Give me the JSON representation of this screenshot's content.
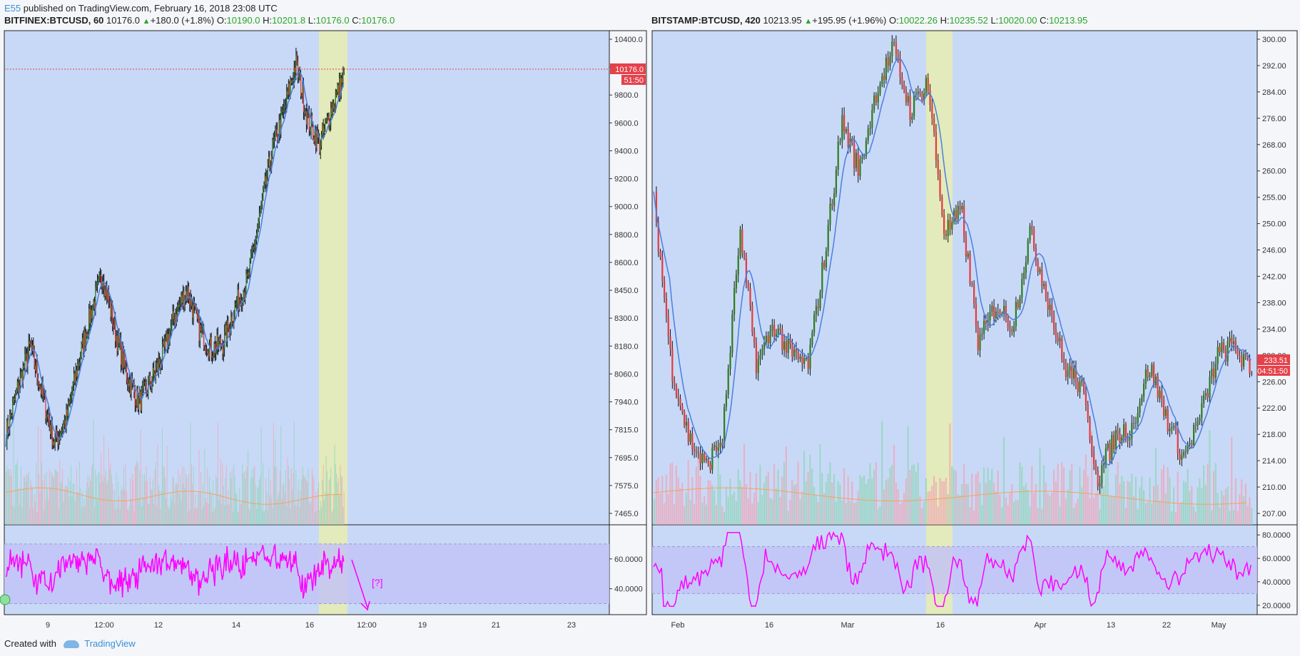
{
  "header": {
    "author": "E55",
    "published_text": "published on TradingView.com, February 16, 2018 23:08 UTC"
  },
  "footer": {
    "created_with": "Created with",
    "brand": "TradingView"
  },
  "colors": {
    "plot_bg": "#c8d9f7",
    "volume_up": "#8fd4b6",
    "volume_down": "#f2a3b3",
    "candle_up": "#2e7d1e",
    "candle_down": "#e53b3b",
    "ma_line": "#4a7fe0",
    "volume_ma": "#f5a25a",
    "rsi_line": "#ff00ff",
    "rsi_band": "#c2c2f7",
    "highlight": "#e8ecb0",
    "price_label": "#e5414a"
  },
  "chart_data": [
    {
      "type": "candlestick",
      "symbol": "BITFINEX:BTCUSD",
      "interval": "60",
      "legend": {
        "last": "10176.0",
        "change": "+180.0 (+1.8%)",
        "open_label": "O:",
        "open": "10190.0",
        "high_label": "H:",
        "high": "10201.8",
        "low_label": "L:",
        "low": "10176.0",
        "close_label": "C:",
        "close": "10176.0"
      },
      "price_axis_ticks": [
        "10400.0",
        "10000.0",
        "9800.0",
        "9600.0",
        "9400.0",
        "9200.0",
        "9000.0",
        "8800.0",
        "8600.0",
        "8450.0",
        "8300.0",
        "8180.0",
        "8060.0",
        "7940.0",
        "7815.0",
        "7695.0",
        "7575.0",
        "7465.0"
      ],
      "price_axis_range": [
        7465,
        10400
      ],
      "last_price_label": "10176.0",
      "countdown_label": "51:50",
      "time_axis_ticks": [
        "9",
        "12:00",
        "12",
        "14",
        "16",
        "12:00",
        "19",
        "21",
        "23"
      ],
      "rsi_axis_ticks": [
        "60.0000",
        "40.0000"
      ],
      "rsi_range": [
        25,
        80
      ],
      "rsi_band": [
        30,
        70
      ],
      "annotation": "[?]",
      "price_series_approx": [
        7950,
        8250,
        8500,
        8200,
        7900,
        8050,
        8400,
        8700,
        8950,
        8600,
        8320,
        8150,
        8280,
        8450,
        8700,
        8850,
        8600,
        8480,
        8520,
        8750,
        8900,
        9300,
        9700,
        9950,
        10250,
        9900,
        9750,
        9980,
        10176
      ]
    },
    {
      "type": "candlestick",
      "symbol": "BITSTAMP:BTCUSD",
      "interval": "420",
      "legend": {
        "last": "10213.95",
        "change": "+195.95 (+1.96%)",
        "open_label": "O:",
        "open": "10022.26",
        "high_label": "H:",
        "high": "10235.52",
        "low_label": "L:",
        "low": "10020.00",
        "close_label": "C:",
        "close": "10213.95"
      },
      "price_axis_ticks": [
        "300.00",
        "292.00",
        "284.00",
        "276.00",
        "268.00",
        "260.00",
        "255.00",
        "250.00",
        "246.00",
        "242.00",
        "238.00",
        "234.00",
        "230.00",
        "226.00",
        "222.00",
        "218.00",
        "214.00",
        "210.00",
        "207.00"
      ],
      "price_axis_range": [
        207,
        300
      ],
      "last_price_label": "233.51",
      "countdown_label": "04:51:50",
      "time_axis_ticks": [
        "Feb",
        "16",
        "Mar",
        "16",
        "Apr",
        "13",
        "22",
        "May"
      ],
      "rsi_axis_ticks": [
        "80.0000",
        "60.0000",
        "40.0000",
        "20.0000"
      ],
      "rsi_range": [
        15,
        85
      ],
      "rsi_band": [
        30,
        70
      ],
      "price_series_approx": [
        268,
        236,
        222,
        216,
        222,
        262,
        236,
        244,
        238,
        236,
        258,
        284,
        274,
        290,
        298,
        286,
        292,
        262,
        266,
        240,
        248,
        244,
        262,
        250,
        236,
        232,
        214,
        222,
        224,
        236,
        226,
        218,
        226,
        238,
        240,
        234
      ]
    }
  ]
}
